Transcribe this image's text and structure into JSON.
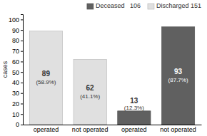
{
  "chart_data": {
    "type": "bar",
    "ylabel": "cases",
    "categories": [
      "operated",
      "not operated",
      "operated",
      "not operated"
    ],
    "series": [
      {
        "name": "Deceased   106",
        "color": "#606060",
        "values": [
          null,
          null,
          13,
          93
        ],
        "shares": [
          null,
          null,
          12.3,
          87.7
        ],
        "share_labels": [
          null,
          null,
          "(12.3%)",
          "(87.7%)"
        ]
      },
      {
        "name": "Discharged 151",
        "color": "#e0e0e0",
        "values": [
          89,
          62,
          null,
          null
        ],
        "shares": [
          58.9,
          41.1,
          null,
          null
        ],
        "share_labels": [
          "(58.9%)",
          "(41.1%)",
          null,
          null
        ]
      }
    ],
    "ylim": [
      0,
      105
    ],
    "yticks": [
      0,
      10,
      20,
      30,
      40,
      50,
      60,
      70,
      80,
      90,
      100
    ],
    "grid": false,
    "legend": "upper right",
    "data_labels": true
  }
}
